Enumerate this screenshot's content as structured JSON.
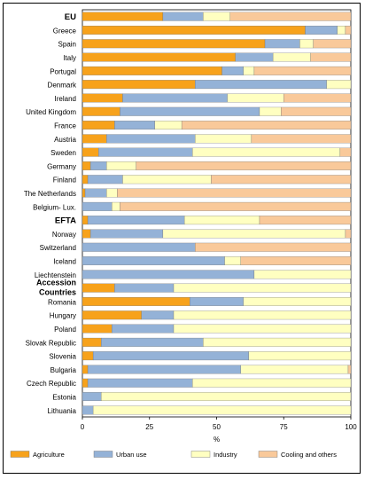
{
  "chart_data": {
    "type": "bar",
    "stacked": true,
    "orientation": "horizontal",
    "xlabel": "%",
    "ylabel": "",
    "xlim": [
      0,
      100
    ],
    "xticks": [
      "0",
      "25",
      "50",
      "75",
      "100"
    ],
    "grid": false,
    "legend_position": "bottom",
    "series_names": [
      "Agriculture",
      "Urban use",
      "Industry",
      "Cooling and others"
    ],
    "series_colors": [
      "#f7a21b",
      "#94b2d7",
      "#ffffc1",
      "#f9c99a"
    ],
    "rows": [
      {
        "label": "EU",
        "heading": true,
        "values": [
          30,
          15,
          10,
          45
        ]
      },
      {
        "label": "Greece",
        "values": [
          83,
          12,
          3,
          2
        ]
      },
      {
        "label": "Spain",
        "values": [
          68,
          13,
          5,
          14
        ]
      },
      {
        "label": "Italy",
        "values": [
          57,
          14,
          14,
          15
        ]
      },
      {
        "label": "Portugal",
        "values": [
          52,
          8,
          4,
          36
        ]
      },
      {
        "label": "Denmark",
        "values": [
          42,
          49,
          9,
          0
        ]
      },
      {
        "label": "Ireland",
        "values": [
          15,
          39,
          21,
          25
        ]
      },
      {
        "label": "United Kingdom",
        "values": [
          14,
          52,
          8,
          26
        ]
      },
      {
        "label": "France",
        "values": [
          12,
          15,
          10,
          63
        ]
      },
      {
        "label": "Austria",
        "values": [
          9,
          33,
          21,
          37
        ]
      },
      {
        "label": "Sweden",
        "values": [
          6,
          35,
          55,
          4
        ]
      },
      {
        "label": "Germany",
        "values": [
          3,
          6,
          11,
          80
        ]
      },
      {
        "label": "Finland",
        "values": [
          2,
          13,
          33,
          52
        ]
      },
      {
        "label": "The Netherlands",
        "values": [
          1,
          8,
          4,
          87
        ]
      },
      {
        "label": "Belgium- Lux.",
        "values": [
          0,
          11,
          3,
          86
        ]
      },
      {
        "label": "EFTA",
        "heading": true,
        "values": [
          2,
          36,
          28,
          34
        ]
      },
      {
        "label": "Norway",
        "values": [
          3,
          27,
          68,
          2
        ]
      },
      {
        "label": "Switzerland",
        "values": [
          0,
          42,
          0,
          58
        ]
      },
      {
        "label": "Iceland",
        "values": [
          0,
          53,
          6,
          41
        ]
      },
      {
        "label": "Liechtenstein",
        "values": [
          0,
          64,
          36,
          0
        ]
      },
      {
        "label": "Accession Countries",
        "heading": true,
        "values": [
          12,
          22,
          66,
          0
        ]
      },
      {
        "label": "Romania",
        "values": [
          40,
          20,
          40,
          0
        ]
      },
      {
        "label": "Hungary",
        "values": [
          22,
          12,
          66,
          0
        ]
      },
      {
        "label": "Poland",
        "values": [
          11,
          23,
          66,
          0
        ]
      },
      {
        "label": "Slovak Republic",
        "values": [
          7,
          38,
          55,
          0
        ]
      },
      {
        "label": "Slovenia",
        "values": [
          4,
          58,
          38,
          0
        ]
      },
      {
        "label": "Bulgaria",
        "values": [
          2,
          57,
          40,
          1
        ]
      },
      {
        "label": "Czech Republic",
        "values": [
          2,
          39,
          59,
          0
        ]
      },
      {
        "label": "Estonia",
        "values": [
          0,
          7,
          93,
          0
        ]
      },
      {
        "label": "Lithuania",
        "values": [
          0,
          4,
          96,
          0
        ]
      }
    ]
  }
}
